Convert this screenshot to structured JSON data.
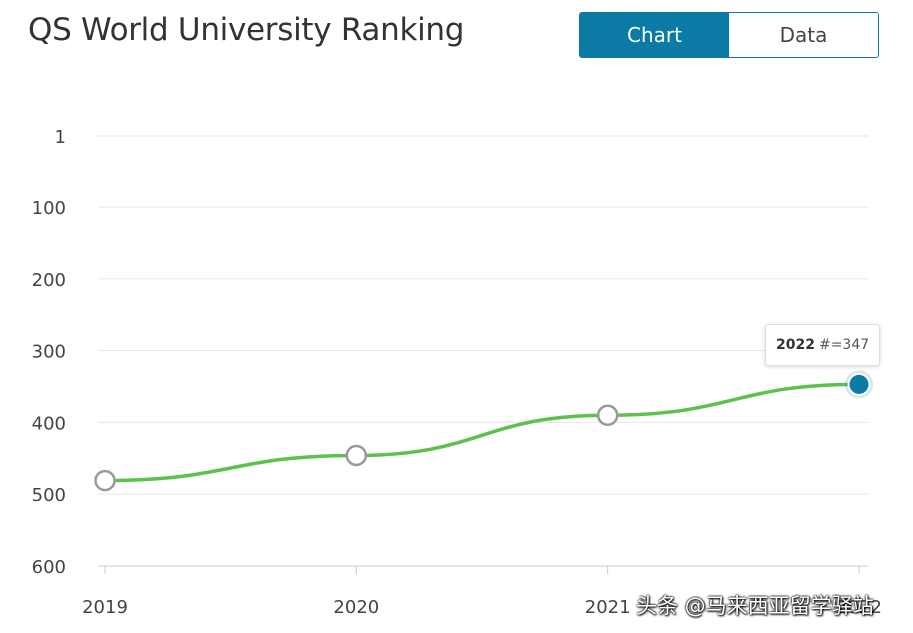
{
  "header": {
    "title": "QS World University Ranking"
  },
  "view_toggle": {
    "chart_label": "Chart",
    "data_label": "Data",
    "active": "Chart"
  },
  "tooltip": {
    "year": "2022",
    "value_text": "#=347"
  },
  "watermark": {
    "text": "头条 @马来西亚留学驿站"
  },
  "colors": {
    "accent": "#0b7ba6",
    "line": "#5cc24c",
    "gridline": "#e6e6e6",
    "marker_outline": "#999999"
  },
  "chart_data": {
    "type": "line",
    "title": "QS World University Ranking",
    "x": [
      "2019",
      "2020",
      "2021",
      "2022"
    ],
    "series": [
      {
        "values": [
          481,
          446,
          390,
          347
        ]
      }
    ],
    "y_ticks": [
      1,
      100,
      200,
      300,
      400,
      500,
      600
    ],
    "ylim": [
      600,
      1
    ],
    "y_reversed": true,
    "grid": true,
    "highlighted_index": 3
  }
}
